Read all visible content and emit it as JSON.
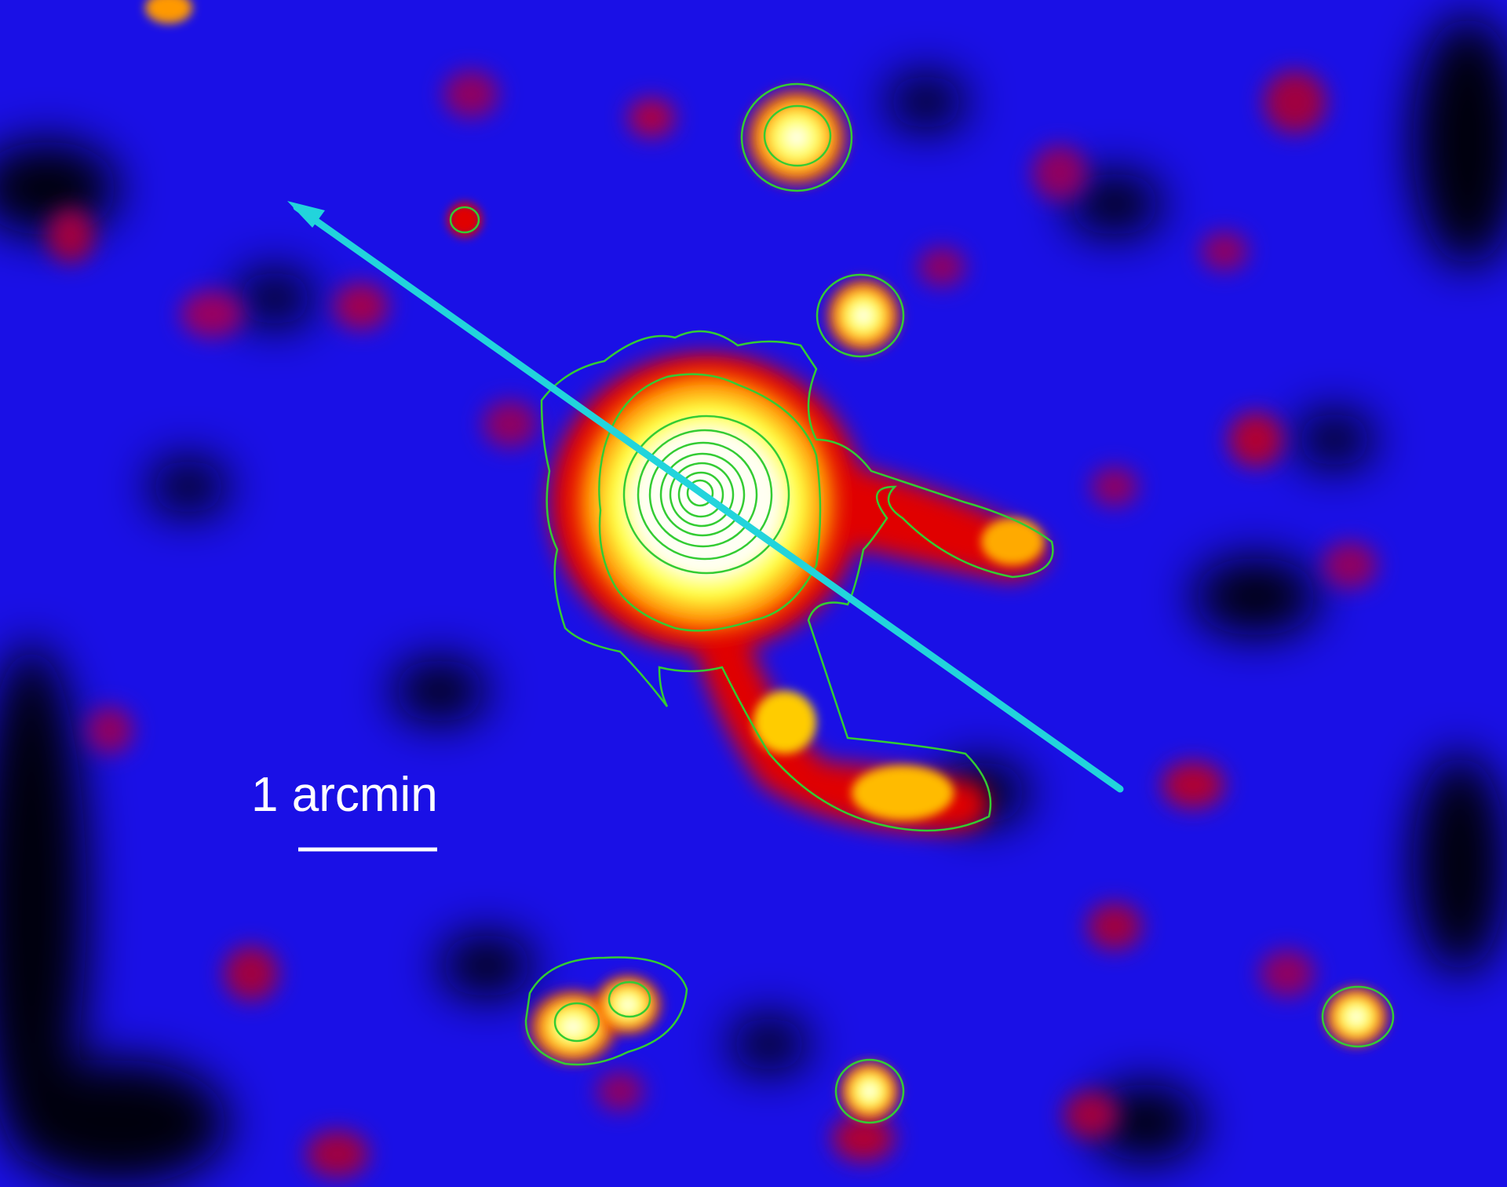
{
  "image": {
    "description_free": true,
    "colormap": [
      "#000000",
      "#0000ff",
      "#e00000",
      "#ffff00",
      "#ffffff"
    ],
    "contour_color": "#33cc33",
    "arrow_color": "#22d4dc"
  },
  "scale_bar": {
    "label": "1 arcmin"
  }
}
